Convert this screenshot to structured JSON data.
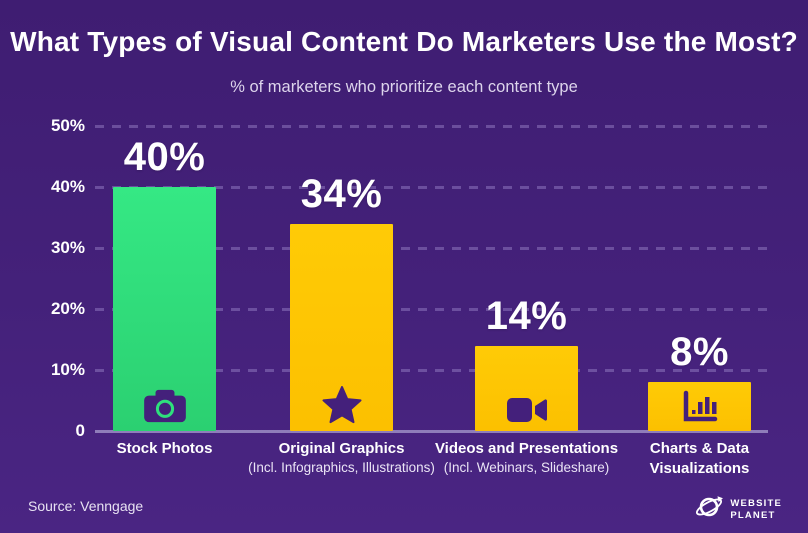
{
  "header": {
    "title": "What Types of Visual Content Do Marketers Use the Most?",
    "subtitle": "% of marketers who prioritize each content type"
  },
  "chart_data": {
    "type": "bar",
    "title": "What Types of Visual Content Do Marketers Use the Most?",
    "subtitle": "% of marketers who prioritize each content type",
    "categories": [
      "Stock Photos",
      "Original Graphics",
      "Videos and Presentations",
      "Charts & Data Visualizations"
    ],
    "category_lines": [
      [
        "Stock Photos"
      ],
      [
        "Original Graphics"
      ],
      [
        "Videos and Presentations"
      ],
      [
        "Charts & Data",
        "Visualizations"
      ]
    ],
    "sublabels": [
      "",
      "(Incl. Infographics, Illustrations)",
      "(Incl. Webinars, Slideshare)",
      ""
    ],
    "values": [
      40,
      34,
      14,
      8
    ],
    "value_labels": [
      "40%",
      "34%",
      "14%",
      "8%"
    ],
    "ids": [
      "stock-photos",
      "original-graphics",
      "videos-and-presentations",
      "charts-and-data-visualizations"
    ],
    "bar_colors": [
      "green",
      "yellow",
      "yellow",
      "yellow"
    ],
    "icons": [
      "camera-icon",
      "star-icon",
      "video-camera-icon",
      "bar-chart-icon"
    ],
    "yticks": [
      {
        "label": "50%",
        "value": 50
      },
      {
        "label": "40%",
        "value": 40
      },
      {
        "label": "30%",
        "value": 30
      },
      {
        "label": "20%",
        "value": 20
      },
      {
        "label": "10%",
        "value": 10
      },
      {
        "label": "0",
        "value": 0
      }
    ],
    "ylim": [
      0,
      50
    ],
    "grid": "dashed horizontal gridlines at every 10%",
    "legend": "none",
    "colors": {
      "green_bar_top": "#35e884",
      "green_bar_bottom": "#2bd071",
      "yellow_bar_top": "#ffcb06",
      "yellow_bar_bottom": "#fcc000",
      "background_purple": "#44217a",
      "icon_purple": "#44207b",
      "gridline": "#8d75bd",
      "text_white": "#ffffff"
    }
  },
  "footer": {
    "source": "Source: Venngage",
    "brand": {
      "name": "Website Planet",
      "line1": "WEBSITE",
      "line2": "PLANET",
      "icon": "planet-icon"
    }
  }
}
